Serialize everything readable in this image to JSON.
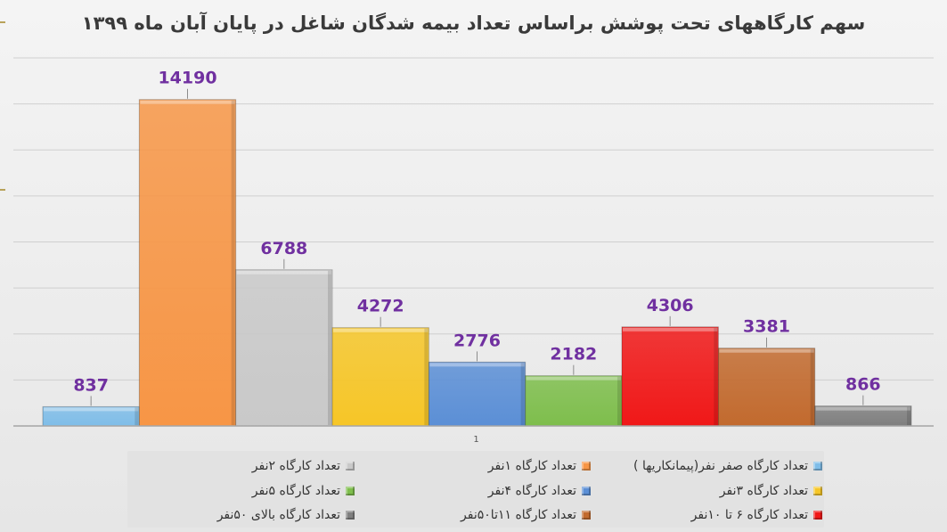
{
  "chart_data": {
    "type": "bar",
    "title": "سهم کارگاههای تحت پوشش براساس تعداد بیمه شدگان شاغل در پایان آبان ماه ۱۳۹۹",
    "categories": [
      "1"
    ],
    "ylim": [
      0,
      16000
    ],
    "grid": true,
    "legend_position": "bottom",
    "series": [
      {
        "name": "تعداد کارگاه صفر نفر(پیمانکاریها )",
        "value": 837,
        "color": "#7fbde8"
      },
      {
        "name": "تعداد کارگاه ۱نفر",
        "value": 14190,
        "color": "#f79646"
      },
      {
        "name": "تعداد کارگاه ۲نفر",
        "value": 6788,
        "color": "#c9c9c9"
      },
      {
        "name": "تعداد کارگاه ۳نفر",
        "value": 4272,
        "color": "#f6c627"
      },
      {
        "name": "تعداد کارگاه ۴نفر",
        "value": 2776,
        "color": "#5b8fd6"
      },
      {
        "name": "تعداد کارگاه ۵نفر",
        "value": 2182,
        "color": "#7ebe4c"
      },
      {
        "name": "تعداد کارگاه ۶ تا ۱۰نفر",
        "value": 4306,
        "color": "#f01818"
      },
      {
        "name": "تعداد کارگاه ۱۱تا۵۰نفر",
        "value": 3381,
        "color": "#c26a2e"
      },
      {
        "name": "تعداد کارگاه بالای ۵۰نفر",
        "value": 866,
        "color": "#7f7f7f"
      }
    ]
  }
}
